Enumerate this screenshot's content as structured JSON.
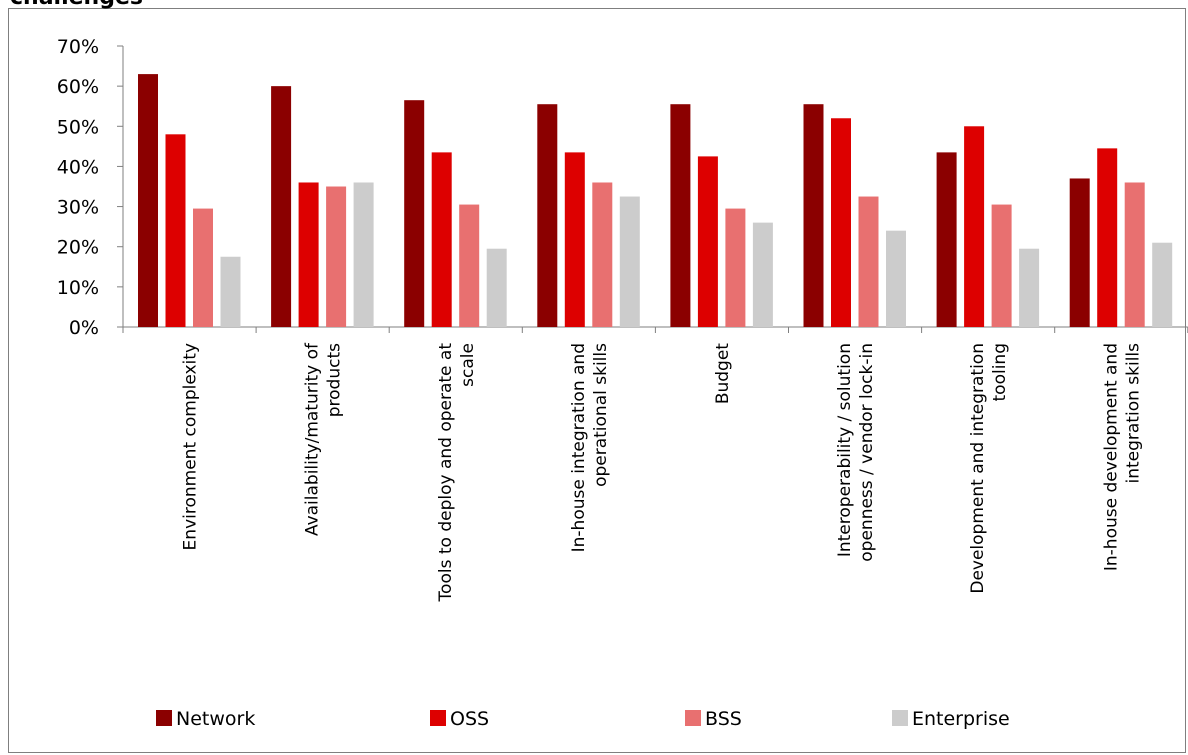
{
  "title": "challenges",
  "colors": {
    "axis": "#7f7f7f"
  },
  "chart_data": {
    "type": "bar",
    "title": "challenges",
    "ylim": [
      0,
      70
    ],
    "yticks": [
      "0%",
      "10%",
      "20%",
      "30%",
      "40%",
      "50%",
      "60%",
      "70%"
    ],
    "yunit": "%",
    "grid": false,
    "legend_position": "bottom",
    "categories": [
      [
        "Environment complexity"
      ],
      [
        "Availability/maturity of",
        "products"
      ],
      [
        "Tools to deploy and operate at",
        "scale"
      ],
      [
        "In-house integration and",
        "operational skills"
      ],
      [
        "Budget"
      ],
      [
        "Interoperability / solution",
        "openness / vendor lock-in"
      ],
      [
        "Development and integration",
        "tooling"
      ],
      [
        "In-house development and",
        "integration skills"
      ]
    ],
    "series": [
      {
        "name": "Network",
        "color": "#8b0000",
        "values": [
          63,
          60,
          56.5,
          55.5,
          55.5,
          55.5,
          43.5,
          37
        ]
      },
      {
        "name": "OSS",
        "color": "#dd0000",
        "values": [
          48,
          36,
          43.5,
          43.5,
          42.5,
          52,
          50,
          44.5
        ]
      },
      {
        "name": "BSS",
        "color": "#e87070",
        "values": [
          29.5,
          35,
          30.5,
          36,
          29.5,
          32.5,
          30.5,
          36
        ]
      },
      {
        "name": "Enterprise",
        "color": "#cccccc",
        "values": [
          17.5,
          36,
          19.5,
          32.5,
          26,
          24,
          19.5,
          21
        ]
      }
    ]
  }
}
